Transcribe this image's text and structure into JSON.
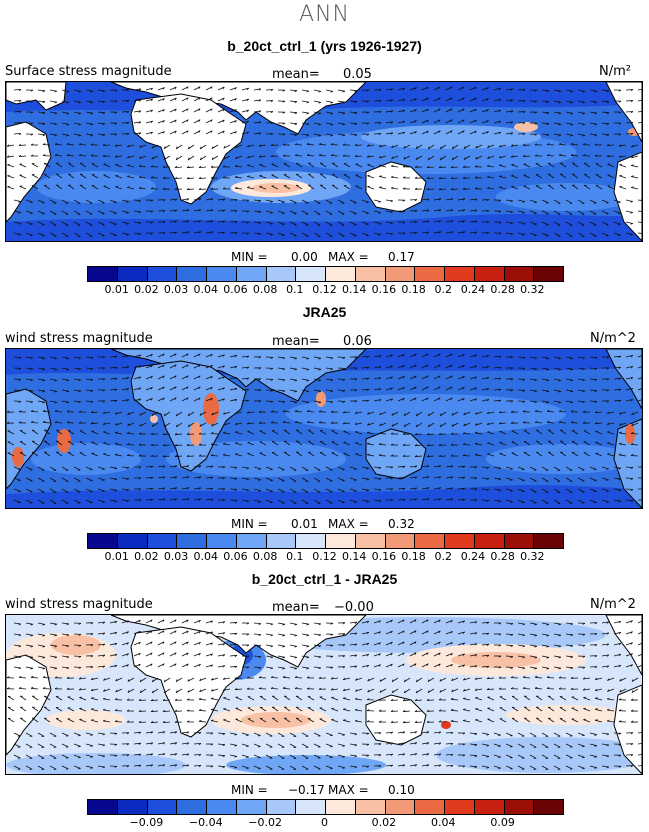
{
  "figure_title": "ANN",
  "colorbar_colors": [
    "#08088e",
    "#0a2ac0",
    "#1e4fdc",
    "#2f6ee0",
    "#4a8af0",
    "#6fa6f5",
    "#a8c8fa",
    "#d7e6fb",
    "#fde8dc",
    "#f8c0a4",
    "#f29a78",
    "#ea6a44",
    "#e03a1f",
    "#c8210f",
    "#9c0f08",
    "#6a0404"
  ],
  "panels": [
    {
      "title": "b_20ct_ctrl_1 (yrs 1926-1927)",
      "variable": "Surface stress magnitude",
      "mean_label": "mean=",
      "mean_value": "0.05",
      "units": "N/m²",
      "min_label": "MIN =",
      "min_value": "0.00",
      "max_label": "MAX =",
      "max_value": "0.17",
      "colorbar_ticks": [
        "0.01",
        "0.02",
        "0.03",
        "0.04",
        "0.06",
        "0.08",
        "0.1",
        "0.12",
        "0.14",
        "0.16",
        "0.18",
        "0.2",
        "0.24",
        "0.28",
        "0.32"
      ]
    },
    {
      "title": "JRA25",
      "variable": "wind stress magnitude",
      "mean_label": "mean=",
      "mean_value": "0.06",
      "units": "N/m^2",
      "min_label": "MIN =",
      "min_value": "0.01",
      "max_label": "MAX =",
      "max_value": "0.32",
      "colorbar_ticks": [
        "0.01",
        "0.02",
        "0.03",
        "0.04",
        "0.06",
        "0.08",
        "0.1",
        "0.12",
        "0.14",
        "0.16",
        "0.18",
        "0.2",
        "0.24",
        "0.28",
        "0.32"
      ]
    },
    {
      "title": "b_20ct_ctrl_1 - JRA25",
      "variable": "wind stress magnitude",
      "mean_label": "mean=",
      "mean_value": "−0.00",
      "units": "N/m^2",
      "min_label": "MIN =",
      "min_value": "−0.17",
      "max_label": "MAX =",
      "max_value": "0.10",
      "colorbar_ticks": [
        "−0.09",
        "−0.04",
        "−0.02",
        "0",
        "0.02",
        "0.04",
        "0.09"
      ]
    }
  ]
}
